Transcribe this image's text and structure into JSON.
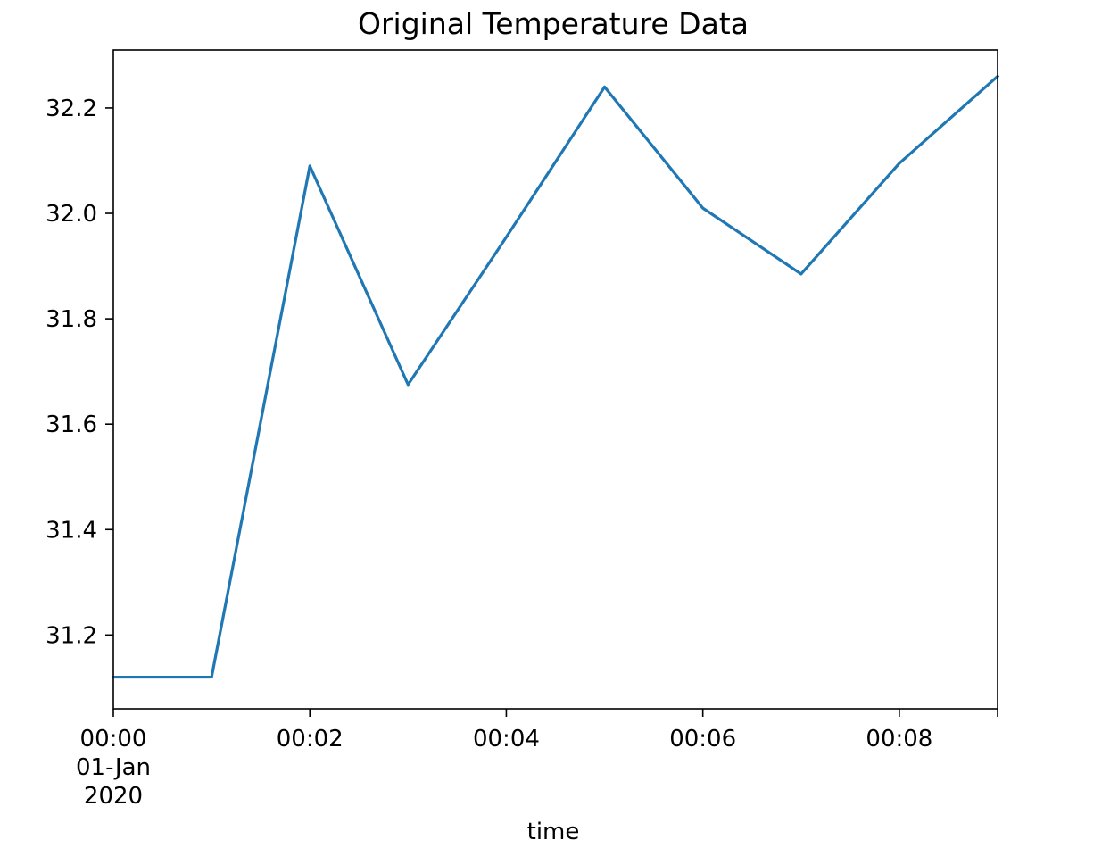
{
  "chart_data": {
    "type": "line",
    "title": "Original Temperature Data",
    "xlabel": "time",
    "ylabel": "",
    "x": [
      "2020-01-01 00:00",
      "2020-01-01 00:01",
      "2020-01-01 00:02",
      "2020-01-01 00:03",
      "2020-01-01 00:04",
      "2020-01-01 00:05",
      "2020-01-01 00:06",
      "2020-01-01 00:07",
      "2020-01-01 00:08",
      "2020-01-01 00:09"
    ],
    "series": [
      {
        "values": [
          31.12,
          31.12,
          32.09,
          31.675,
          31.955,
          32.24,
          32.01,
          31.885,
          32.095,
          32.26
        ],
        "color": "#1f77b4"
      }
    ],
    "xlim": [
      "2020-01-01 00:00",
      "2020-01-01 00:09"
    ],
    "ylim": [
      31.06,
      32.31
    ],
    "x_ticks": [
      {
        "value": "2020-01-01 00:00",
        "lines": [
          "00:00",
          "01-Jan",
          "2020"
        ]
      },
      {
        "value": "2020-01-01 00:02",
        "lines": [
          "00:02"
        ]
      },
      {
        "value": "2020-01-01 00:04",
        "lines": [
          "00:04"
        ]
      },
      {
        "value": "2020-01-01 00:06",
        "lines": [
          "00:06"
        ]
      },
      {
        "value": "2020-01-01 00:08",
        "lines": [
          "00:08"
        ]
      },
      {
        "value": "2020-01-01 00:09",
        "lines": []
      }
    ],
    "y_ticks": [
      {
        "value": 31.2,
        "label": "31.2"
      },
      {
        "value": 31.4,
        "label": "31.4"
      },
      {
        "value": 31.6,
        "label": "31.6"
      },
      {
        "value": 31.8,
        "label": "31.8"
      },
      {
        "value": 32.0,
        "label": "32.0"
      },
      {
        "value": 32.2,
        "label": "32.2"
      }
    ],
    "grid": false,
    "legend": "none"
  }
}
